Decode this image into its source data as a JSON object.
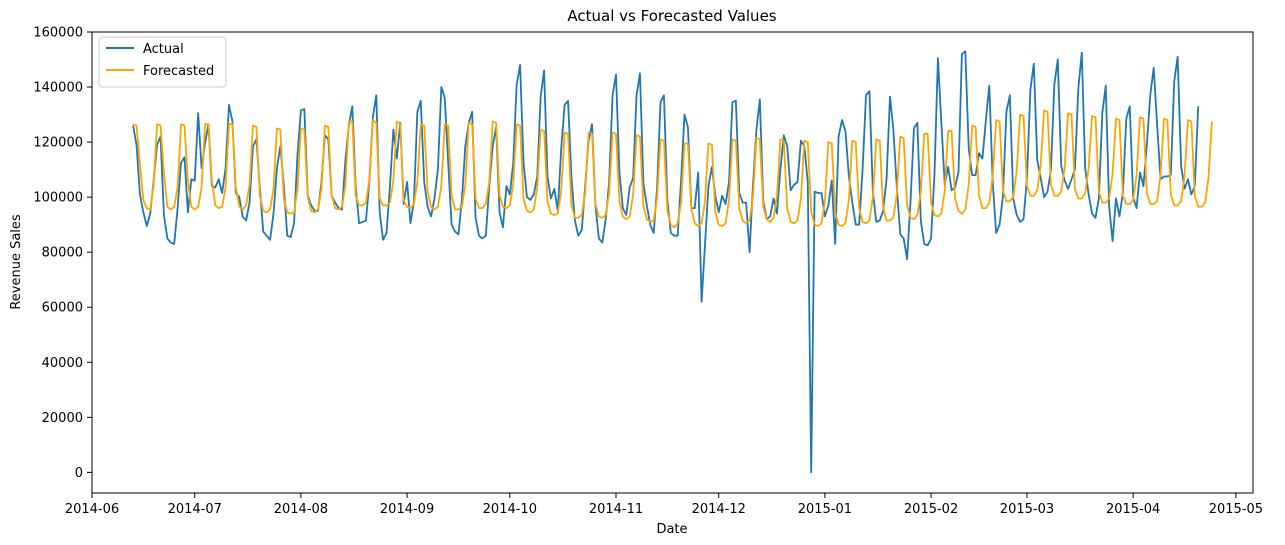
{
  "chart_data": {
    "type": "line",
    "title": "Actual vs Forecasted Values",
    "xlabel": "Date",
    "ylabel": "Revenue Sales",
    "xlim": [
      "2014-06-01",
      "2015-05-06"
    ],
    "ylim": [
      -7500,
      160000
    ],
    "x_ticks": [
      "2014-06",
      "2014-07",
      "2014-08",
      "2014-09",
      "2014-10",
      "2014-11",
      "2014-12",
      "2015-01",
      "2015-02",
      "2015-03",
      "2015-04",
      "2015-05"
    ],
    "y_ticks": [
      "0",
      "20000",
      "40000",
      "60000",
      "80000",
      "100000",
      "120000",
      "140000",
      "160000"
    ],
    "grid": false,
    "legend": "top-left",
    "start_date": "2014-06-13",
    "series": [
      {
        "name": "Actual",
        "color": "#1f77b4",
        "values": [
          126000,
          119000,
          101000,
          94500,
          89500,
          94000,
          106000,
          119000,
          122000,
          93500,
          85000,
          83500,
          83000,
          96000,
          112500,
          114500,
          94500,
          106500,
          106000,
          130500,
          110500,
          119500,
          126500,
          104000,
          103500,
          106500,
          101500,
          110500,
          133500,
          127500,
          101500,
          100000,
          93000,
          91500,
          98000,
          118500,
          121000,
          103500,
          87500,
          86000,
          84500,
          94000,
          110500,
          118500,
          104500,
          86000,
          85500,
          90500,
          115500,
          131500,
          132000,
          100500,
          97000,
          95000,
          95000,
          105500,
          122500,
          121000,
          100500,
          98000,
          96000,
          95500,
          113500,
          126000,
          133000,
          103500,
          90500,
          91000,
          91500,
          106000,
          129000,
          137000,
          94500,
          84500,
          87000,
          104000,
          124500,
          114000,
          127000,
          97500,
          105500,
          90500,
          98500,
          131000,
          135000,
          105500,
          96500,
          93000,
          99500,
          110000,
          140000,
          136000,
          112500,
          90000,
          87500,
          86500,
          99000,
          118500,
          127000,
          131000,
          92500,
          86000,
          85000,
          86000,
          104000,
          118500,
          125500,
          94500,
          89000,
          104000,
          101000,
          112500,
          141000,
          148000,
          112500,
          100000,
          99000,
          101000,
          107500,
          136500,
          146000,
          107500,
          99500,
          103000,
          95000,
          117500,
          133500,
          135000,
          107000,
          91500,
          86000,
          88000,
          104000,
          120500,
          126500,
          97000,
          85000,
          83500,
          92000,
          105500,
          137000,
          144500,
          109000,
          96000,
          93500,
          103500,
          107000,
          137000,
          145000,
          105000,
          97000,
          90000,
          87000,
          103500,
          134500,
          137000,
          99000,
          87000,
          86000,
          86000,
          106000,
          130000,
          125500,
          96000,
          96000,
          109000,
          62000,
          83000,
          104000,
          111000,
          100500,
          94500,
          100500,
          97500,
          105500,
          134500,
          135000,
          101500,
          98000,
          98000,
          80000,
          104500,
          124500,
          135500,
          98500,
          92000,
          93000,
          99500,
          94000,
          110000,
          122500,
          118500,
          102500,
          104500,
          105500,
          120500,
          118500,
          105500,
          0,
          102000,
          101500,
          101500,
          93000,
          97000,
          106000,
          83000,
          122000,
          128000,
          124000,
          107500,
          98000,
          90000,
          90000,
          110000,
          137000,
          138500,
          102000,
          91000,
          91500,
          95000,
          106500,
          136500,
          124500,
          103500,
          86500,
          85000,
          77500,
          98500,
          125000,
          127000,
          91500,
          83000,
          82500,
          85000,
          108500,
          150500,
          127000,
          104500,
          111000,
          102500,
          103500,
          109000,
          152000,
          153000,
          117500,
          108000,
          108000,
          116000,
          114000,
          128000,
          140500,
          105500,
          87000,
          90000,
          100500,
          131000,
          137000,
          99500,
          93500,
          91000,
          92000,
          107000,
          139000,
          148500,
          113500,
          107000,
          100000,
          102000,
          110000,
          141000,
          150000,
          111500,
          106000,
          103000,
          106500,
          110000,
          139500,
          152500,
          110500,
          101000,
          94000,
          92500,
          99500,
          130500,
          140500,
          96500,
          84000,
          99500,
          93000,
          101500,
          128500,
          133000,
          100000,
          96000,
          109000,
          104000,
          119000,
          137000,
          147000,
          126500,
          106500,
          107500,
          107500,
          108000,
          142000,
          151000,
          111500,
          103000,
          106500,
          101000,
          104000,
          133000
        ]
      },
      {
        "name": "Forecasted",
        "color": "#ffa500",
        "values": [
          126500,
          126000,
          112000,
          99000,
          96000,
          95500,
          104500,
          126500,
          126000,
          109000,
          96500,
          95500,
          96500,
          103500,
          126500,
          126000,
          106000,
          96500,
          95500,
          96500,
          103500,
          126500,
          126500,
          106000,
          97000,
          96000,
          96500,
          103500,
          126500,
          126500,
          103500,
          96500,
          95500,
          97000,
          104500,
          126000,
          125500,
          100500,
          95000,
          94500,
          95500,
          103000,
          125000,
          124500,
          99500,
          94500,
          94000,
          94500,
          103000,
          125000,
          124500,
          100000,
          95000,
          94500,
          95500,
          103000,
          126000,
          125500,
          100500,
          96000,
          95500,
          96500,
          104500,
          127500,
          127500,
          100500,
          97000,
          97000,
          98000,
          106500,
          128000,
          127000,
          99500,
          97000,
          97000,
          98000,
          106000,
          127500,
          126500,
          99000,
          96500,
          96000,
          97500,
          105500,
          126500,
          126000,
          102000,
          96500,
          95500,
          96500,
          104000,
          126500,
          126000,
          100500,
          95500,
          95500,
          96500,
          104500,
          127000,
          126500,
          99500,
          96000,
          96000,
          97500,
          105500,
          127500,
          127000,
          100500,
          96500,
          96000,
          97000,
          105000,
          126500,
          126000,
          99500,
          95000,
          94500,
          95500,
          103500,
          124500,
          124000,
          98500,
          94000,
          93500,
          94000,
          102000,
          123500,
          123000,
          97000,
          92500,
          92500,
          93500,
          101500,
          123500,
          123000,
          97500,
          93000,
          92500,
          93500,
          101500,
          123500,
          123000,
          98500,
          93000,
          92000,
          93000,
          101000,
          122500,
          122000,
          97000,
          92000,
          91000,
          91500,
          99500,
          121000,
          120500,
          95000,
          90000,
          89000,
          90500,
          98000,
          119500,
          119500,
          96000,
          90500,
          89500,
          90500,
          98500,
          119500,
          119000,
          94500,
          90000,
          89500,
          90500,
          99000,
          121000,
          120500,
          96000,
          91500,
          90500,
          91500,
          100000,
          121500,
          121000,
          96500,
          92000,
          91000,
          92500,
          100500,
          121000,
          120500,
          96000,
          91000,
          90500,
          91500,
          99500,
          120500,
          120000,
          94500,
          90000,
          89500,
          90500,
          98500,
          120000,
          119500,
          94500,
          90000,
          89500,
          90500,
          99000,
          120500,
          120000,
          96000,
          91000,
          90500,
          91500,
          100000,
          121000,
          120500,
          96500,
          91500,
          91500,
          92500,
          101000,
          122000,
          121500,
          97000,
          92500,
          92000,
          93500,
          102000,
          123000,
          123000,
          98000,
          93500,
          93000,
          94000,
          102500,
          124000,
          124000,
          99500,
          95000,
          94000,
          95500,
          104500,
          126000,
          125500,
          100500,
          96000,
          96000,
          98000,
          107500,
          128000,
          127500,
          102500,
          98500,
          98500,
          100000,
          109500,
          130000,
          129500,
          104000,
          100500,
          100500,
          102500,
          111500,
          131500,
          131000,
          104500,
          100500,
          100500,
          102000,
          110500,
          130500,
          130000,
          103000,
          99500,
          99500,
          101500,
          110500,
          129500,
          129000,
          102000,
          98000,
          98000,
          99500,
          108500,
          128500,
          128000,
          100500,
          97500,
          97500,
          99000,
          108000,
          129000,
          128500,
          101500,
          97500,
          97500,
          98500,
          108000,
          128500,
          128000,
          101000,
          97000,
          97000,
          98500,
          107500,
          128000,
          127500,
          100500,
          96500,
          96500,
          98000,
          107000,
          127500
        ]
      }
    ]
  }
}
